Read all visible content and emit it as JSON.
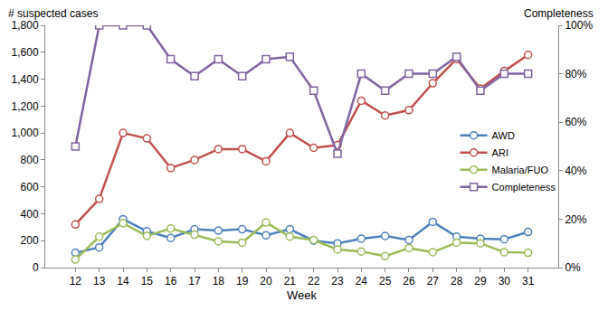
{
  "chart_data": {
    "type": "line",
    "xlabel": "Week",
    "ylabel": "# suspected cases",
    "y2label": "Completeness",
    "categories": [
      "12",
      "13",
      "14",
      "15",
      "16",
      "17",
      "18",
      "19",
      "20",
      "21",
      "22",
      "23",
      "24",
      "25",
      "26",
      "27",
      "28",
      "29",
      "30",
      "31"
    ],
    "series": [
      {
        "name": "AWD",
        "color": "#4f81bd",
        "marker": "circle",
        "values": [
          110,
          150,
          360,
          270,
          220,
          285,
          275,
          285,
          240,
          285,
          200,
          180,
          215,
          235,
          205,
          340,
          230,
          215,
          210,
          265
        ]
      },
      {
        "name": "ARI",
        "color": "#c0504d",
        "marker": "circle",
        "values": [
          320,
          510,
          1000,
          960,
          740,
          800,
          880,
          880,
          790,
          1000,
          890,
          910,
          1240,
          1130,
          1170,
          1370,
          1550,
          1330,
          1460,
          1580
        ]
      },
      {
        "name": "Malaria/FUO",
        "color": "#9bbb59",
        "marker": "circle",
        "values": [
          60,
          230,
          330,
          235,
          290,
          245,
          195,
          185,
          335,
          230,
          205,
          135,
          120,
          85,
          145,
          115,
          185,
          180,
          115,
          110
        ]
      },
      {
        "name": "Completeness",
        "color": "#8064a2",
        "marker": "square",
        "axis": "y2",
        "values": [
          50,
          100,
          100,
          100,
          86,
          79,
          86,
          79,
          86,
          87,
          73,
          47,
          80,
          73,
          80,
          80,
          87,
          73,
          80,
          80
        ]
      }
    ],
    "ylim": [
      0,
      1800
    ],
    "yticks": [
      0,
      200,
      400,
      600,
      800,
      {
        "value": 1000,
        "label": "1,000"
      },
      {
        "value": 1200,
        "label": "1,200"
      },
      {
        "value": 1400,
        "label": "1,400"
      },
      {
        "value": 1600,
        "label": "1,600"
      },
      {
        "value": 1800,
        "label": "1,800"
      }
    ],
    "y2lim": [
      0,
      100
    ],
    "y2ticks": [
      {
        "value": 0,
        "label": "0%"
      },
      {
        "value": 20,
        "label": "20%"
      },
      {
        "value": 40,
        "label": "40%"
      },
      {
        "value": 60,
        "label": "60%"
      },
      {
        "value": 80,
        "label": "80%"
      },
      {
        "value": 100,
        "label": "100%"
      }
    ],
    "grid": false,
    "legend": "right"
  }
}
